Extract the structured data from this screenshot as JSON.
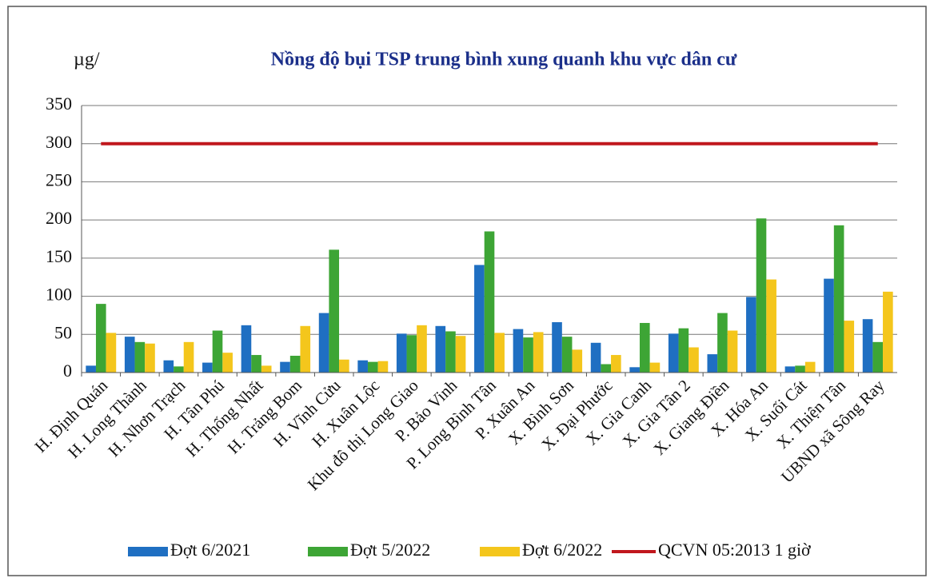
{
  "chart_data": {
    "type": "bar",
    "title": "Nồng độ bụi TSP trung bình xung quanh khu vực dân cư",
    "y_label": "µg/",
    "categories": [
      "H. Định Quán",
      "H. Long Thành",
      "H. Nhơn Trạch",
      "H. Tân Phú",
      "H. Thống Nhất",
      "H. Trảng Bom",
      "H. Vĩnh Cửu",
      "H. Xuân Lộc",
      "Khu đô thị Long Giao",
      "P. Bảo Vinh",
      "P. Long Bình Tân",
      "P. Xuân An",
      "X. Bình Sơn",
      "X. Đại Phước",
      "X. Gia Canh",
      "X. Gia Tân 2",
      "X. Giang Điền",
      "X. Hóa An",
      "X. Suối Cát",
      "X. Thiện Tân",
      "UBND xã Sông Ray"
    ],
    "series": [
      {
        "name": "Đợt 6/2021",
        "color": "#1f6fc2",
        "values": [
          9,
          47,
          16,
          13,
          62,
          14,
          78,
          16,
          51,
          61,
          141,
          57,
          66,
          39,
          7,
          51,
          24,
          99,
          8,
          123,
          70
        ]
      },
      {
        "name": "Đợt 5/2022",
        "color": "#3da535",
        "values": [
          90,
          40,
          8,
          55,
          23,
          22,
          161,
          14,
          49,
          54,
          185,
          46,
          47,
          11,
          65,
          58,
          78,
          202,
          9,
          193,
          40
        ]
      },
      {
        "name": "Đợt 6/2022",
        "color": "#f4c61c",
        "values": [
          52,
          38,
          40,
          26,
          9,
          61,
          17,
          15,
          62,
          48,
          52,
          53,
          30,
          23,
          13,
          33,
          55,
          122,
          14,
          68,
          106
        ]
      },
      {
        "name": "QCVN 05:2013 1 giờ",
        "type": "line",
        "color": "#c0171d",
        "values": [
          300,
          300,
          300,
          300,
          300,
          300,
          300,
          300,
          300,
          300,
          300,
          300,
          300,
          300,
          300,
          300,
          300,
          300,
          300,
          300,
          300
        ]
      }
    ],
    "ylim": [
      0,
      350
    ],
    "yticks": [
      0,
      50,
      100,
      150,
      200,
      250,
      300,
      350
    ],
    "grid": true,
    "legend": "bottom"
  }
}
